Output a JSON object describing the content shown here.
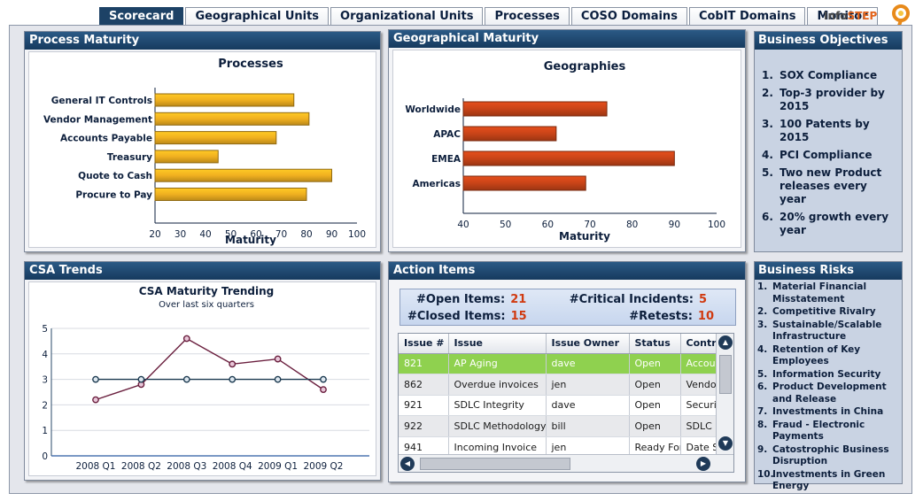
{
  "tabs": [
    "Scorecard",
    "Geographical Units",
    "Organizational Units",
    "Processes",
    "COSO Domains",
    "CobIT Domains",
    "Monitor"
  ],
  "logo": {
    "part1": "Info",
    "part2": "STEP"
  },
  "process_panel": {
    "title": "Process Maturity"
  },
  "geo_panel": {
    "title": "Geographical Maturity"
  },
  "csa_panel": {
    "title": "CSA Trends"
  },
  "action_panel": {
    "title": "Action Items"
  },
  "objectives": {
    "title": "Business Objectives",
    "items": [
      {
        "num": "1.",
        "text": "SOX Compliance"
      },
      {
        "num": "2.",
        "text": "Top-3 provider by 2015"
      },
      {
        "num": "3.",
        "text": "100 Patents by 2015"
      },
      {
        "num": "4.",
        "text": "PCI Compliance"
      },
      {
        "num": "5.",
        "text": "Two new Product releases every year"
      },
      {
        "num": "6.",
        "text": "20% growth every year"
      }
    ]
  },
  "risks": {
    "title": "Business Risks",
    "items": [
      {
        "num": "1.",
        "text": "Material Financial Misstatement"
      },
      {
        "num": "2.",
        "text": "Competitive Rivalry"
      },
      {
        "num": "3.",
        "text": "Sustainable/Scalable Infrastructure"
      },
      {
        "num": "4.",
        "text": "Retention of Key Employees"
      },
      {
        "num": "5.",
        "text": "Information Security"
      },
      {
        "num": "6.",
        "text": "Product Development and Release"
      },
      {
        "num": "7.",
        "text": "Investments in China"
      },
      {
        "num": "8.",
        "text": "Fraud - Electronic Payments"
      },
      {
        "num": "9.",
        "text": "Catostrophic Business Disruption"
      },
      {
        "num": "10.",
        "text": "Investments in Green Energy"
      }
    ]
  },
  "actions": {
    "summary": {
      "open_label": "#Open Items:",
      "open_value": "21",
      "critical_label": "#Critical Incidents:",
      "critical_value": "5",
      "closed_label": "#Closed Items:",
      "closed_value": "15",
      "retests_label": "#Retests:",
      "retests_value": "10"
    },
    "columns": [
      "Issue #",
      "Issue",
      "Issue Owner",
      "Status",
      "Control"
    ],
    "rows": [
      [
        "821",
        "AP Aging",
        "dave",
        "Open",
        "Accounts"
      ],
      [
        "862",
        "Overdue invoices",
        "jen",
        "Open",
        "Vendors"
      ],
      [
        "921",
        "SDLC Integrity",
        "dave",
        "Open",
        "Security"
      ],
      [
        "922",
        "SDLC Methodology",
        "bill",
        "Open",
        "SDLC Meth"
      ],
      [
        "941",
        "Incoming Invoice",
        "jen",
        "Ready For",
        "Date Stamp"
      ]
    ]
  },
  "chart_data": [
    {
      "type": "bar",
      "orientation": "horizontal",
      "title": "Processes",
      "xlabel": "Maturity",
      "ylabel": "",
      "categories": [
        "General IT Controls",
        "Vendor Management",
        "Accounts Payable",
        "Treasury",
        "Quote to Cash",
        "Procure to Pay"
      ],
      "values": [
        75,
        81,
        68,
        45,
        90,
        80
      ],
      "xlim": [
        20,
        100
      ],
      "ticks": [
        20,
        30,
        40,
        50,
        60,
        70,
        80,
        90,
        100
      ],
      "color": "#f0b020"
    },
    {
      "type": "bar",
      "orientation": "horizontal",
      "title": "Geographies",
      "xlabel": "Maturity",
      "ylabel": "",
      "categories": [
        "Worldwide",
        "APAC",
        "EMEA",
        "Americas"
      ],
      "values": [
        74,
        62,
        90,
        69
      ],
      "xlim": [
        40,
        100
      ],
      "ticks": [
        40,
        50,
        60,
        70,
        80,
        90,
        100
      ],
      "color": "#c84418"
    },
    {
      "type": "line",
      "title": "CSA Maturity Trending",
      "subtitle": "Over last six quarters",
      "categories": [
        "2008 Q1",
        "2008 Q2",
        "2008 Q3",
        "2008 Q4",
        "2009 Q1",
        "2009 Q2"
      ],
      "series": [
        {
          "values": [
            2.2,
            2.8,
            4.6,
            3.6,
            3.8,
            2.6
          ],
          "color": "#6a1f3e"
        },
        {
          "values": [
            3,
            3,
            3,
            3,
            3,
            3
          ],
          "color": "#1c3a50"
        }
      ],
      "ylim": [
        0,
        5
      ],
      "yticks": [
        0,
        1,
        2,
        3,
        4,
        5
      ],
      "grid": true
    }
  ]
}
